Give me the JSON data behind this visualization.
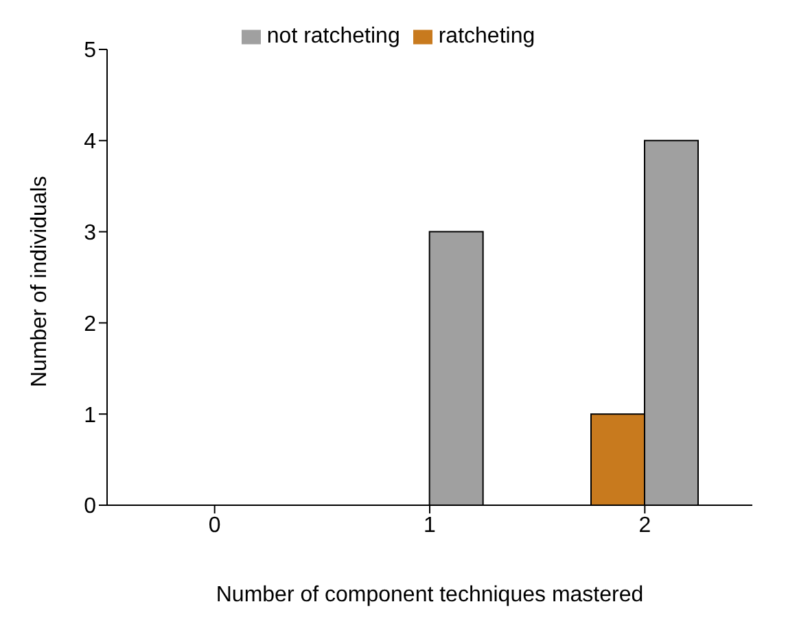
{
  "chart_data": {
    "type": "bar",
    "xlabel": "Number of component techniques mastered",
    "ylabel": "Number of individuals",
    "categories": [
      "0",
      "1",
      "2"
    ],
    "series": [
      {
        "name": "ratcheting",
        "color": "#c87a1e",
        "values": [
          0,
          0,
          1
        ]
      },
      {
        "name": "not ratcheting",
        "color": "#a0a0a0",
        "values": [
          0,
          3,
          4
        ]
      }
    ],
    "ylim": [
      0,
      5
    ],
    "yticks": [
      0,
      1,
      2,
      3,
      4,
      5
    ],
    "grid": false,
    "legend": "top"
  }
}
